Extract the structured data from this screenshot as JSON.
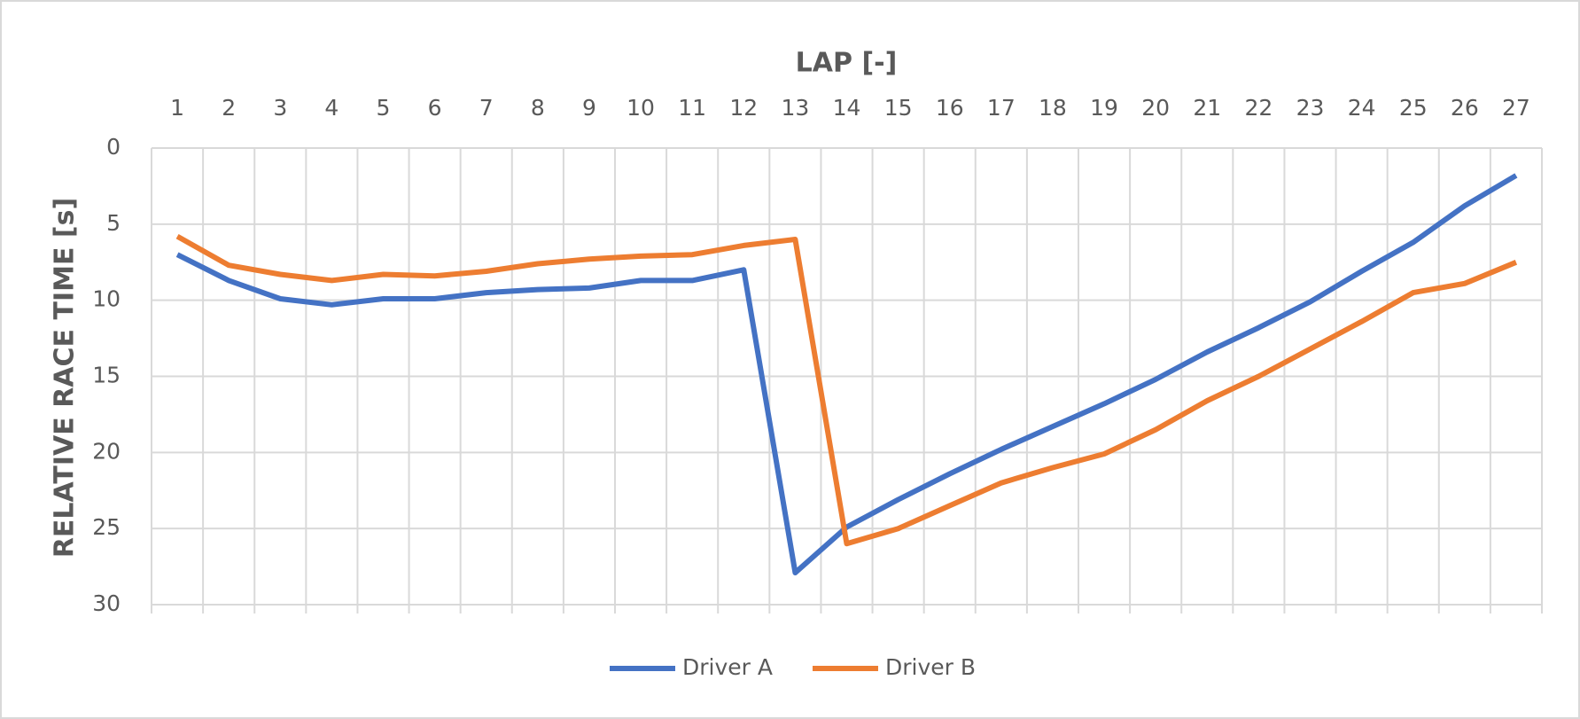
{
  "chart_data": {
    "type": "line",
    "x_label": "LAP [-]",
    "y_label": "RELATIVE RACE TIME [s]",
    "categories": [
      "1",
      "2",
      "3",
      "4",
      "5",
      "6",
      "7",
      "8",
      "9",
      "10",
      "11",
      "12",
      "13",
      "14",
      "15",
      "16",
      "17",
      "18",
      "19",
      "20",
      "21",
      "22",
      "23",
      "24",
      "25",
      "26",
      "27"
    ],
    "series": [
      {
        "name": "Driver A",
        "color": "#4472c4",
        "values": [
          7.0,
          8.7,
          9.9,
          10.3,
          9.9,
          9.9,
          9.5,
          9.3,
          9.2,
          8.7,
          8.7,
          8.0,
          27.9,
          24.9,
          23.1,
          21.4,
          19.8,
          18.3,
          16.8,
          15.2,
          13.4,
          11.8,
          10.1,
          8.1,
          6.2,
          3.8,
          1.8
        ]
      },
      {
        "name": "Driver B",
        "color": "#ed7d31",
        "values": [
          5.8,
          7.7,
          8.3,
          8.7,
          8.3,
          8.4,
          8.1,
          7.6,
          7.3,
          7.1,
          7.0,
          6.4,
          6.0,
          26.0,
          25.0,
          23.5,
          22.0,
          21.0,
          20.1,
          18.5,
          16.6,
          15.0,
          13.2,
          11.4,
          9.5,
          8.9,
          7.5
        ]
      }
    ],
    "ylim": [
      0,
      30
    ],
    "yticks": [
      0,
      5,
      10,
      15,
      20,
      25,
      30
    ],
    "y_reversed": true,
    "x_axis_position": "top",
    "grid": true,
    "legend": "bottom"
  }
}
